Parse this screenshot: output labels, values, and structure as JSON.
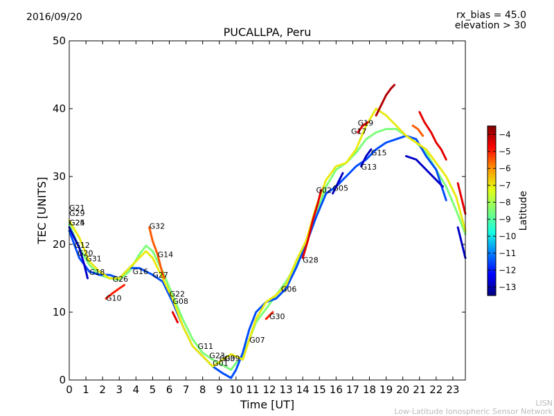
{
  "header": {
    "date": "2016/09/20",
    "rx_bias": "rx_bias = 45.0",
    "elevation": "elevation > 30"
  },
  "footer": {
    "line1": "LISN",
    "line2": "Low-Latitude Ionospheric Sensor Network"
  },
  "chart_data": {
    "type": "line",
    "title": "PUCALLPA, Peru",
    "xlabel": "Time [UT]",
    "ylabel": "TEC [UNITS]",
    "xlim": [
      0,
      23.75
    ],
    "ylim": [
      0,
      50
    ],
    "xticks": [
      0,
      1,
      2,
      3,
      4,
      5,
      6,
      7,
      8,
      9,
      10,
      11,
      12,
      13,
      14,
      15,
      16,
      17,
      18,
      19,
      20,
      21,
      22,
      23
    ],
    "yticks": [
      0,
      10,
      20,
      30,
      40,
      50
    ],
    "grid": false,
    "colorbar": {
      "label": "Latitude",
      "min": -13.5,
      "max": -3.5,
      "ticks": [
        -4,
        -5,
        -6,
        -7,
        -8,
        -9,
        -10,
        -11,
        -12,
        -13
      ],
      "colors": [
        "#00007f",
        "#0000ff",
        "#0080ff",
        "#15ffe1",
        "#7dff7a",
        "#e4ff13",
        "#ff9400",
        "#ff0000",
        "#7f0000"
      ]
    },
    "series": [
      {
        "lat": -8.5,
        "x": [
          0.0,
          0.6,
          1.2,
          1.8,
          2.4,
          3.0,
          3.6,
          4.2,
          4.6,
          5.0,
          5.6,
          6.2,
          6.8,
          7.4,
          8.0,
          8.6,
          9.2,
          9.7,
          10.0,
          10.4,
          10.8,
          11.2,
          11.8,
          12.4,
          13.0,
          13.6,
          14.2,
          14.8,
          15.4,
          16.0,
          16.6,
          17.2,
          17.8,
          18.4,
          19.0,
          19.6,
          20.2,
          20.8,
          21.4,
          22.0,
          22.6,
          23.2,
          23.75
        ],
        "y": [
          23.0,
          19.5,
          17.0,
          15.5,
          15.0,
          14.8,
          16.0,
          18.5,
          19.8,
          19.0,
          16.0,
          12.5,
          9.0,
          6.0,
          4.0,
          3.0,
          2.2,
          1.5,
          2.5,
          3.5,
          6.0,
          8.5,
          10.5,
          12.5,
          14.5,
          17.0,
          20.5,
          24.5,
          28.5,
          31.0,
          32.0,
          33.5,
          35.5,
          36.5,
          37.0,
          37.0,
          36.0,
          35.0,
          33.5,
          31.0,
          28.5,
          25.0,
          21.5
        ]
      },
      {
        "lat": -11.5,
        "x": [
          0.0,
          0.6,
          1.2,
          1.8,
          2.4,
          3.0,
          3.6,
          4.2,
          4.6,
          5.0,
          5.6,
          6.2,
          6.8,
          7.4,
          8.0,
          8.6,
          9.2,
          9.7,
          10.0,
          10.4,
          10.8,
          11.2,
          11.8,
          12.4,
          13.0,
          13.6,
          14.2,
          14.8,
          15.4,
          16.0,
          16.6,
          17.2,
          17.8,
          18.4,
          19.0,
          19.6,
          20.2,
          20.8,
          21.4,
          22.0,
          22.6
        ],
        "y": [
          22.0,
          18.0,
          16.0,
          15.5,
          15.5,
          15.0,
          16.5,
          16.5,
          16.0,
          15.5,
          14.5,
          11.5,
          8.0,
          5.0,
          3.5,
          2.0,
          1.0,
          0.3,
          1.5,
          4.0,
          7.5,
          10.0,
          11.5,
          12.0,
          13.5,
          16.5,
          20.0,
          24.0,
          27.5,
          28.5,
          30.0,
          31.5,
          32.5,
          34.0,
          35.0,
          35.5,
          36.0,
          35.5,
          33.0,
          31.0,
          26.5
        ]
      },
      {
        "lat": -7.0,
        "x": [
          0.0,
          0.6,
          1.2,
          1.8,
          2.4,
          3.0,
          3.6,
          4.2,
          4.6,
          5.0,
          5.6,
          6.2,
          6.8,
          7.4,
          8.0,
          8.6,
          9.2,
          9.7,
          10.0,
          10.4,
          10.8,
          11.2,
          11.8,
          12.4,
          13.0,
          13.6,
          14.2,
          14.8,
          15.4,
          16.0,
          16.6,
          17.2,
          17.8,
          18.4,
          19.0,
          19.6,
          20.2,
          20.8,
          21.4,
          22.0,
          22.6,
          23.2,
          23.75
        ],
        "y": [
          23.5,
          21.0,
          17.5,
          16.0,
          15.0,
          15.0,
          16.5,
          18.0,
          19.0,
          18.0,
          15.0,
          12.0,
          8.0,
          5.0,
          3.5,
          2.0,
          3.0,
          3.8,
          3.5,
          3.0,
          6.0,
          9.0,
          11.5,
          12.5,
          14.0,
          17.5,
          20.5,
          25.5,
          29.5,
          31.5,
          32.0,
          34.0,
          37.5,
          40.0,
          39.0,
          37.5,
          36.0,
          35.0,
          34.0,
          32.0,
          30.0,
          27.0,
          22.0
        ]
      },
      {
        "lat": -12.8,
        "x": [
          0.0,
          0.3,
          0.6,
          0.9,
          1.1
        ],
        "y": [
          22.5,
          21.0,
          19.5,
          17.0,
          15.0
        ]
      },
      {
        "lat": -5.0,
        "x": [
          2.2,
          2.6,
          3.0,
          3.3
        ],
        "y": [
          12.0,
          12.8,
          13.5,
          14.0
        ]
      },
      {
        "lat": -5.5,
        "x": [
          4.8,
          5.0,
          5.3,
          5.5,
          5.7
        ],
        "y": [
          22.5,
          20.5,
          18.5,
          16.5,
          15.0
        ]
      },
      {
        "lat": -4.5,
        "x": [
          6.2,
          6.5
        ],
        "y": [
          10.0,
          8.5
        ]
      },
      {
        "lat": -5.0,
        "x": [
          11.8,
          12.2
        ],
        "y": [
          9.0,
          10.0
        ]
      },
      {
        "lat": -4.5,
        "x": [
          14.0,
          14.3,
          14.6,
          14.9,
          15.1
        ],
        "y": [
          18.0,
          20.5,
          23.5,
          26.0,
          28.0
        ]
      },
      {
        "lat": -12.8,
        "x": [
          15.8,
          16.1,
          16.4
        ],
        "y": [
          27.5,
          29.0,
          30.5
        ]
      },
      {
        "lat": -12.8,
        "x": [
          17.5,
          17.8,
          18.1
        ],
        "y": [
          31.5,
          33.0,
          34.0
        ]
      },
      {
        "lat": -4.5,
        "x": [
          17.3,
          17.6,
          17.9
        ],
        "y": [
          36.5,
          37.5,
          38.0
        ]
      },
      {
        "lat": -4.0,
        "x": [
          18.4,
          18.7,
          19.0,
          19.3,
          19.5
        ],
        "y": [
          39.0,
          40.5,
          42.0,
          43.0,
          43.5
        ]
      },
      {
        "lat": -4.5,
        "x": [
          21.0,
          21.3,
          21.7,
          22.0,
          22.3,
          22.6
        ],
        "y": [
          39.5,
          38.0,
          36.5,
          35.0,
          34.0,
          32.5
        ]
      },
      {
        "lat": -5.5,
        "x": [
          20.6,
          20.9,
          21.2
        ],
        "y": [
          37.5,
          37.0,
          36.0
        ]
      },
      {
        "lat": -12.8,
        "x": [
          23.3,
          23.5,
          23.75
        ],
        "y": [
          22.5,
          20.5,
          18.0
        ]
      },
      {
        "lat": -4.5,
        "x": [
          23.3,
          23.5,
          23.75
        ],
        "y": [
          29.0,
          27.0,
          24.5
        ]
      },
      {
        "lat": -12.8,
        "x": [
          20.2,
          20.8,
          21.4,
          22.0,
          22.4
        ],
        "y": [
          33.0,
          32.5,
          31.0,
          29.5,
          28.5
        ]
      }
    ],
    "annotations": [
      {
        "text": "G21",
        "x": 0.0,
        "y": 25.0
      },
      {
        "text": "G29",
        "x": 0.0,
        "y": 24.2
      },
      {
        "text": "G24",
        "x": 0.0,
        "y": 22.8
      },
      {
        "text": "G25",
        "x": 0.0,
        "y": 22.8
      },
      {
        "text": "G12",
        "x": 0.3,
        "y": 19.5
      },
      {
        "text": "G20",
        "x": 0.5,
        "y": 18.3
      },
      {
        "text": "G31",
        "x": 1.0,
        "y": 17.5
      },
      {
        "text": "G18",
        "x": 1.2,
        "y": 15.5
      },
      {
        "text": "G26",
        "x": 2.6,
        "y": 14.5
      },
      {
        "text": "G10",
        "x": 2.2,
        "y": 11.7
      },
      {
        "text": "G16",
        "x": 3.8,
        "y": 15.6
      },
      {
        "text": "G27",
        "x": 5.0,
        "y": 15.1
      },
      {
        "text": "G32",
        "x": 4.8,
        "y": 22.3
      },
      {
        "text": "G14",
        "x": 5.3,
        "y": 18.1
      },
      {
        "text": "G22",
        "x": 6.0,
        "y": 12.3
      },
      {
        "text": "G08",
        "x": 6.2,
        "y": 11.2
      },
      {
        "text": "G11",
        "x": 7.7,
        "y": 4.6
      },
      {
        "text": "G23",
        "x": 8.4,
        "y": 3.2
      },
      {
        "text": "G01",
        "x": 8.6,
        "y": 2.1
      },
      {
        "text": "G03",
        "x": 9.0,
        "y": 2.8
      },
      {
        "text": "G09",
        "x": 9.3,
        "y": 2.8
      },
      {
        "text": "G07",
        "x": 10.8,
        "y": 5.5
      },
      {
        "text": "G30",
        "x": 12.0,
        "y": 9.0
      },
      {
        "text": "G06",
        "x": 12.7,
        "y": 13.0
      },
      {
        "text": "G28",
        "x": 14.0,
        "y": 17.3
      },
      {
        "text": "G02",
        "x": 14.8,
        "y": 27.6
      },
      {
        "text": "G05",
        "x": 15.8,
        "y": 27.9
      },
      {
        "text": "G17",
        "x": 16.9,
        "y": 36.3
      },
      {
        "text": "G19",
        "x": 17.3,
        "y": 37.5
      },
      {
        "text": "G13",
        "x": 17.5,
        "y": 31.0
      },
      {
        "text": "G15",
        "x": 18.1,
        "y": 33.1
      }
    ]
  }
}
